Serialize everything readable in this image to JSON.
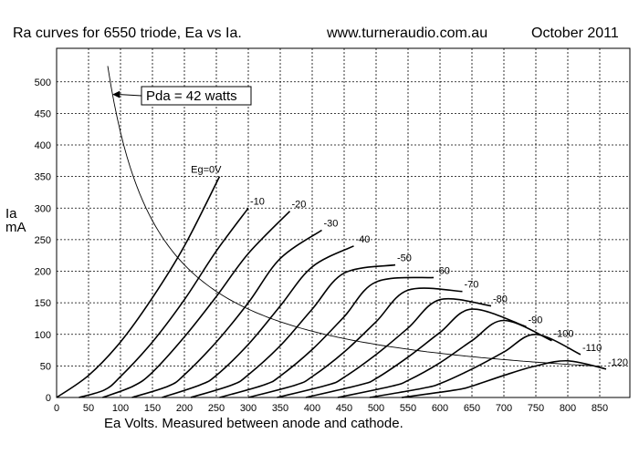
{
  "header": {
    "title": "Ra curves for 6550 triode, Ea vs Ia.",
    "website": "www.turneraudio.com.au",
    "date": "October 2011"
  },
  "chart_data": {
    "type": "line",
    "title": "Ra curves for 6550 triode, Ea vs Ia.",
    "xlabel": "Ea Volts. Measured between anode and cathode.",
    "ylabel": [
      "Ia",
      "mA"
    ],
    "xlim": [
      0,
      900
    ],
    "ylim": [
      0,
      550
    ],
    "x_ticks": [
      0,
      50,
      100,
      150,
      200,
      250,
      300,
      350,
      400,
      450,
      500,
      550,
      600,
      650,
      700,
      750,
      800,
      850
    ],
    "y_ticks": [
      0,
      50,
      100,
      150,
      200,
      250,
      300,
      350,
      400,
      450,
      500
    ],
    "grid": true,
    "series": [
      {
        "name": "Eg=0V",
        "v0": 0,
        "points": [
          [
            0,
            0
          ],
          [
            50,
            35
          ],
          [
            100,
            88
          ],
          [
            150,
            158
          ],
          [
            200,
            240
          ],
          [
            255,
            350
          ]
        ]
      },
      {
        "name": "-10",
        "v0": 35,
        "points": [
          [
            35,
            0
          ],
          [
            75,
            12
          ],
          [
            100,
            33
          ],
          [
            150,
            88
          ],
          [
            200,
            155
          ],
          [
            250,
            232
          ],
          [
            300,
            300
          ]
        ]
      },
      {
        "name": "-20",
        "v0": 72,
        "points": [
          [
            72,
            0
          ],
          [
            120,
            18
          ],
          [
            150,
            40
          ],
          [
            200,
            96
          ],
          [
            250,
            160
          ],
          [
            300,
            228
          ],
          [
            365,
            295
          ]
        ]
      },
      {
        "name": "-30",
        "v0": 118,
        "points": [
          [
            118,
            0
          ],
          [
            175,
            18
          ],
          [
            200,
            36
          ],
          [
            250,
            88
          ],
          [
            300,
            150
          ],
          [
            350,
            220
          ],
          [
            415,
            265
          ]
        ]
      },
      {
        "name": "-40",
        "v0": 165,
        "points": [
          [
            165,
            0
          ],
          [
            225,
            20
          ],
          [
            250,
            35
          ],
          [
            300,
            84
          ],
          [
            350,
            145
          ],
          [
            400,
            207
          ],
          [
            465,
            240
          ]
        ]
      },
      {
        "name": "-50",
        "v0": 210,
        "points": [
          [
            210,
            0
          ],
          [
            275,
            20
          ],
          [
            300,
            36
          ],
          [
            350,
            82
          ],
          [
            400,
            140
          ],
          [
            450,
            197
          ],
          [
            530,
            210
          ]
        ]
      },
      {
        "name": "-60",
        "v0": 255,
        "points": [
          [
            255,
            0
          ],
          [
            325,
            20
          ],
          [
            350,
            34
          ],
          [
            400,
            76
          ],
          [
            450,
            128
          ],
          [
            500,
            183
          ],
          [
            590,
            190
          ]
        ]
      },
      {
        "name": "-70",
        "v0": 300,
        "points": [
          [
            300,
            0
          ],
          [
            375,
            20
          ],
          [
            400,
            33
          ],
          [
            450,
            72
          ],
          [
            500,
            120
          ],
          [
            550,
            170
          ],
          [
            635,
            168
          ]
        ]
      },
      {
        "name": "-80",
        "v0": 345,
        "points": [
          [
            345,
            0
          ],
          [
            425,
            20
          ],
          [
            450,
            32
          ],
          [
            500,
            68
          ],
          [
            550,
            110
          ],
          [
            600,
            155
          ],
          [
            680,
            145
          ]
        ]
      },
      {
        "name": "-90",
        "v0": 390,
        "points": [
          [
            390,
            0
          ],
          [
            475,
            20
          ],
          [
            500,
            30
          ],
          [
            550,
            64
          ],
          [
            600,
            103
          ],
          [
            650,
            140
          ],
          [
            735,
            112
          ]
        ]
      },
      {
        "name": "-100",
        "v0": 440,
        "points": [
          [
            440,
            0
          ],
          [
            525,
            18
          ],
          [
            550,
            27
          ],
          [
            600,
            55
          ],
          [
            650,
            90
          ],
          [
            700,
            122
          ],
          [
            775,
            90
          ]
        ]
      },
      {
        "name": "-110",
        "v0": 490,
        "points": [
          [
            490,
            0
          ],
          [
            575,
            15
          ],
          [
            600,
            22
          ],
          [
            650,
            45
          ],
          [
            700,
            72
          ],
          [
            750,
            100
          ],
          [
            820,
            68
          ]
        ]
      },
      {
        "name": "-120",
        "v0": 540,
        "points": [
          [
            540,
            0
          ],
          [
            625,
            12
          ],
          [
            650,
            18
          ],
          [
            700,
            35
          ],
          [
            750,
            50
          ],
          [
            800,
            58
          ],
          [
            860,
            45
          ]
        ]
      }
    ],
    "pda_curve": {
      "name": "Pda = 42 watts",
      "watts": 42,
      "x_range": [
        75,
        850
      ]
    }
  }
}
